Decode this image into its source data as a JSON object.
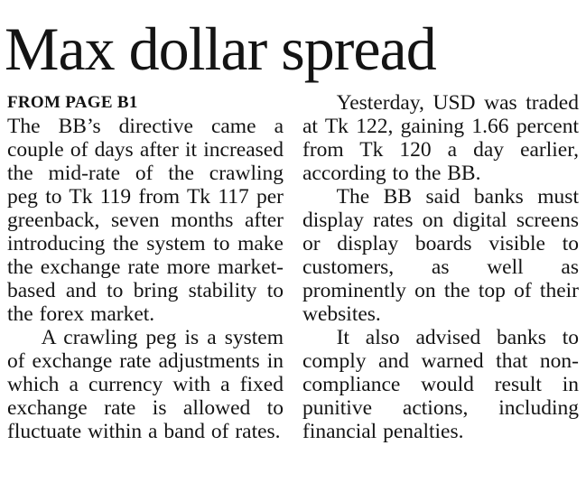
{
  "article": {
    "headline": "Max dollar spread",
    "kicker": "FROM PAGE B1",
    "left_column": {
      "para1": "The BB’s directive came a couple of days after it increased the mid-rate of the crawling peg to Tk 119 from Tk 117 per greenback, seven months after introducing the system to make the exchange rate more market-based and to bring stability to the forex market.",
      "para2": "A crawling peg is a system of exchange rate adjustments in which a currency with a fixed exchange rate is allowed to fluctuate within a band of rates."
    },
    "right_column": {
      "para1": "Yesterday, USD was traded at Tk 122, gaining 1.66 percent from Tk 120 a day earlier, according to the BB.",
      "para2": "The BB said banks must display rates on digital screens or display boards visible to customers, as well as prominently on the top of their websites.",
      "para3": "It also advised banks to comply and warned that non-compliance would result in punitive actions, including financial penalties."
    },
    "colors": {
      "text": "#141414",
      "background": "#ffffff"
    }
  }
}
